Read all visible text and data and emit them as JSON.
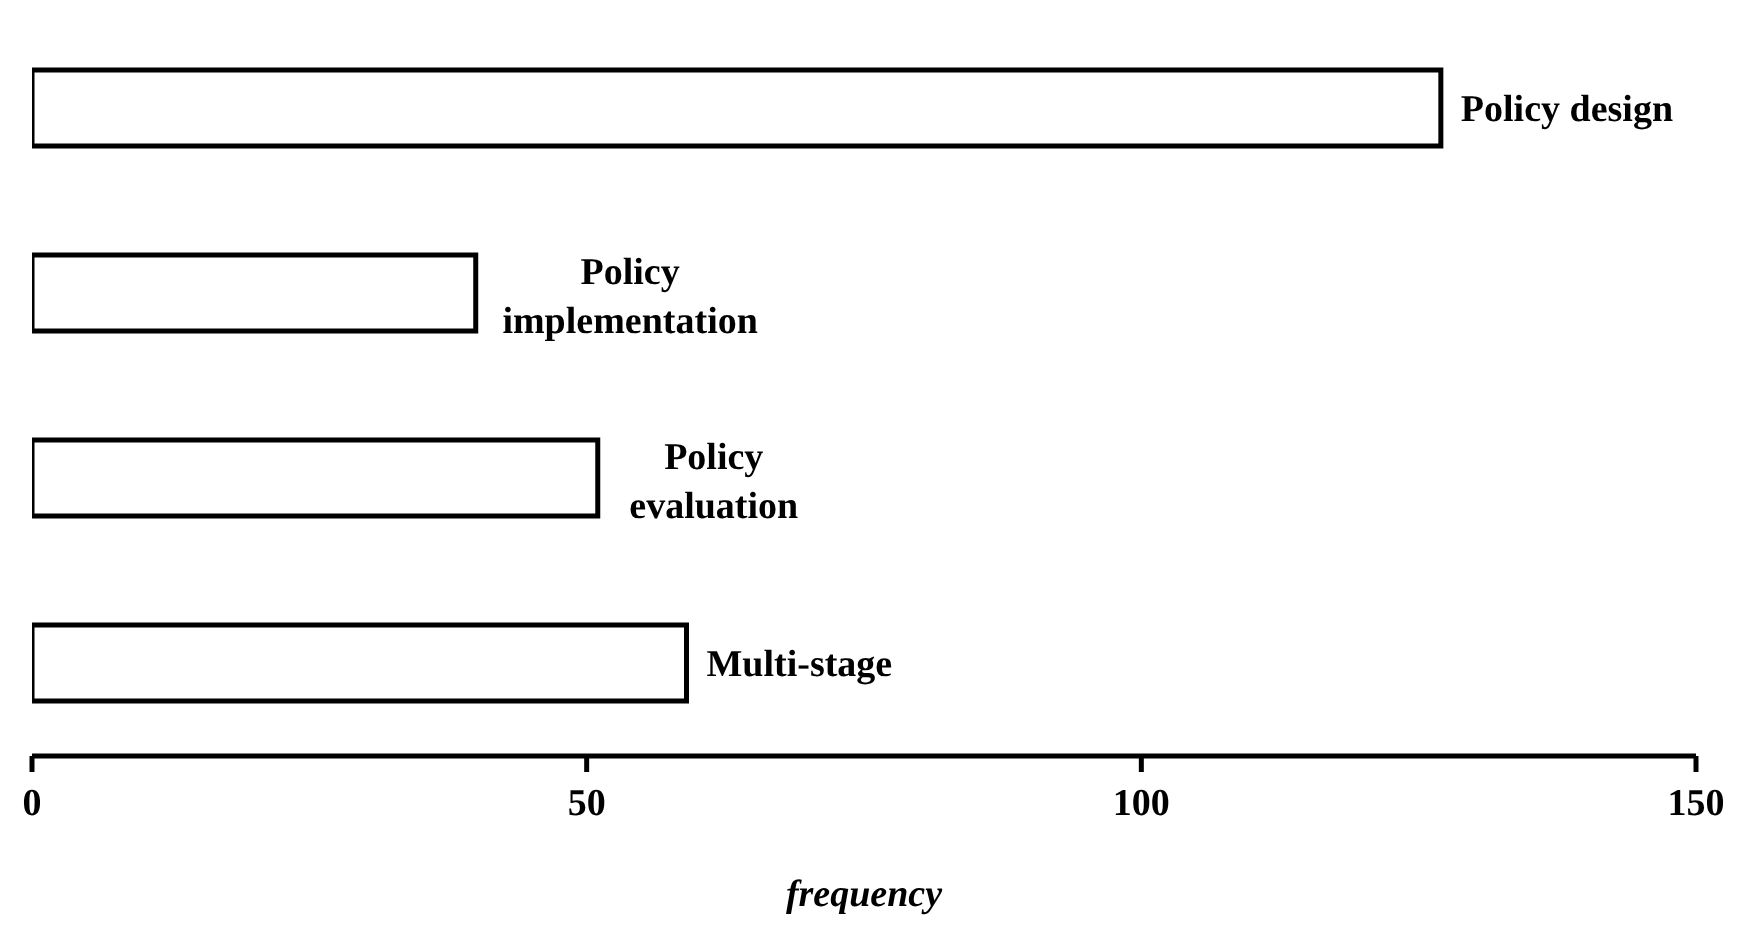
{
  "chart_data": {
    "type": "bar",
    "orientation": "horizontal",
    "categories": [
      "Policy design",
      "Policy implementation",
      "Policy evaluation",
      "Multi-stage"
    ],
    "values": [
      127,
      40,
      51,
      59
    ],
    "color": "#ffffff",
    "xlim": [
      0,
      150
    ],
    "xticks": [
      0,
      50,
      100,
      150
    ],
    "xlabel": "frequency",
    "grid": false,
    "legend": false
  }
}
